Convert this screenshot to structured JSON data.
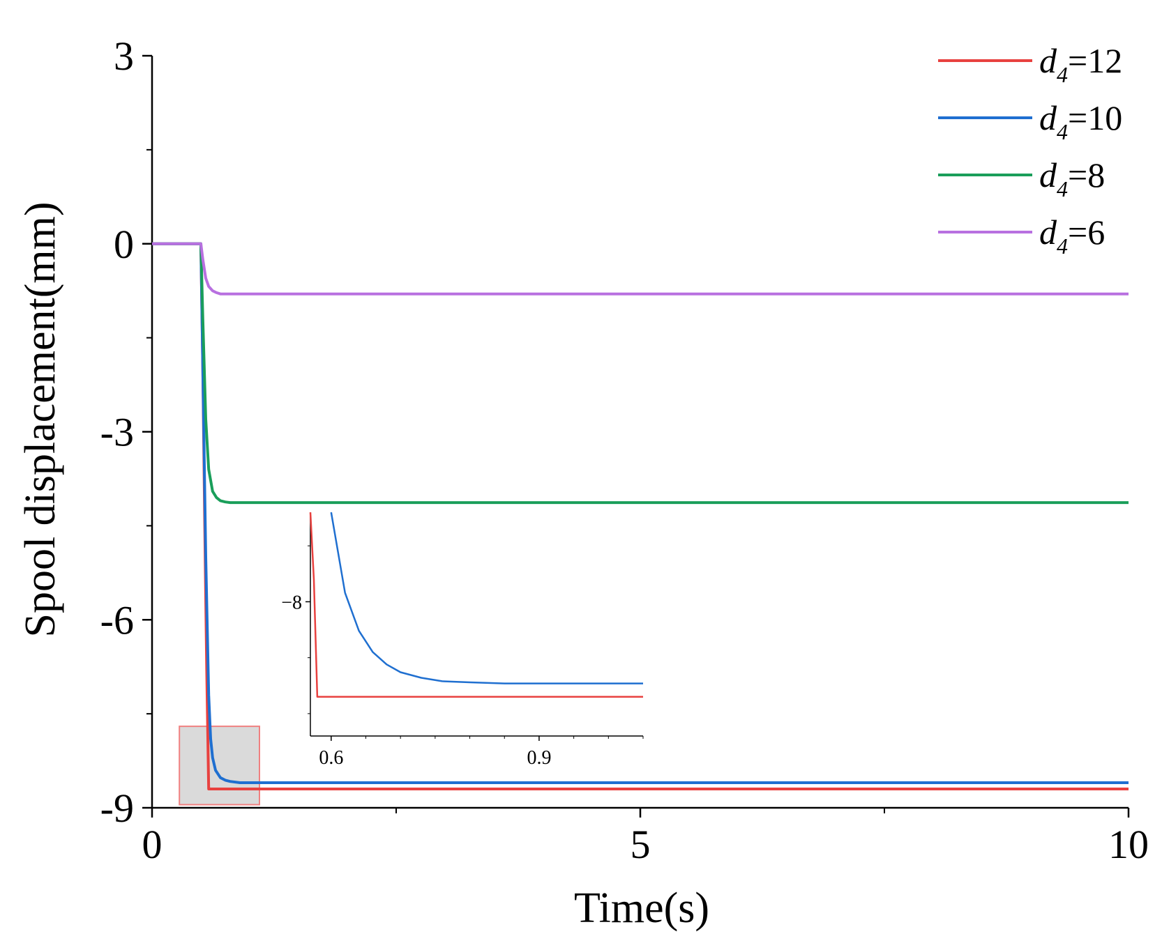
{
  "chart_data": {
    "type": "line",
    "title": "",
    "xlabel": "Time(s)",
    "ylabel": "Spool displacement(mm)",
    "xlim": [
      0,
      10
    ],
    "ylim": [
      -9,
      3
    ],
    "xticks": [
      0,
      5,
      10
    ],
    "yticks": [
      3,
      0,
      -3,
      -6,
      -9
    ],
    "xtick_labels": [
      "0",
      "5",
      "10"
    ],
    "ytick_labels": [
      "3",
      "0",
      "-3",
      "-6",
      "-9"
    ],
    "grid": false,
    "legend_position": "top-right",
    "series": [
      {
        "name": "d4=12",
        "label_base": "d",
        "label_sub": "4",
        "label_rest": "=12",
        "color": "#e8413f",
        "x": [
          0,
          0.5,
          0.52,
          0.54,
          0.56,
          0.58,
          10
        ],
        "y": [
          0,
          0,
          -2.0,
          -4.5,
          -6.8,
          -8.7,
          -8.7
        ]
      },
      {
        "name": "d4=10",
        "label_base": "d",
        "label_sub": "4",
        "label_rest": "=10",
        "color": "#1f6fd0",
        "x": [
          0,
          0.5,
          0.52,
          0.55,
          0.58,
          0.6,
          0.62,
          0.65,
          0.7,
          0.75,
          0.8,
          0.9,
          1.0,
          10
        ],
        "y": [
          0,
          0,
          -2.0,
          -5.0,
          -7.2,
          -7.9,
          -8.2,
          -8.4,
          -8.52,
          -8.56,
          -8.58,
          -8.6,
          -8.6,
          -8.6
        ]
      },
      {
        "name": "d4=8",
        "label_base": "d",
        "label_sub": "4",
        "label_rest": "=8",
        "color": "#1a9e5a",
        "x": [
          0,
          0.5,
          0.52,
          0.55,
          0.58,
          0.62,
          0.66,
          0.7,
          0.75,
          0.8,
          0.9,
          10
        ],
        "y": [
          0,
          0,
          -1.2,
          -2.8,
          -3.6,
          -3.95,
          -4.05,
          -4.1,
          -4.12,
          -4.13,
          -4.13,
          -4.13
        ]
      },
      {
        "name": "d4=6",
        "label_base": "d",
        "label_sub": "4",
        "label_rest": "=6",
        "color": "#b870e0",
        "x": [
          0,
          0.5,
          0.52,
          0.55,
          0.58,
          0.62,
          0.66,
          0.7,
          0.8,
          10
        ],
        "y": [
          0,
          0,
          -0.25,
          -0.55,
          -0.68,
          -0.75,
          -0.78,
          -0.8,
          -0.8,
          -0.8
        ]
      }
    ],
    "highlight_region": {
      "x": [
        0.28,
        1.1
      ],
      "y": [
        -8.95,
        -7.7
      ]
    },
    "inset": {
      "xlim": [
        0.57,
        1.05
      ],
      "ylim": [
        -9.2,
        -7.2
      ],
      "xticks": [
        0.6,
        0.9
      ],
      "yticks": [
        -8
      ],
      "xtick_labels": [
        "0.6",
        "0.9"
      ],
      "ytick_labels": [
        "−8"
      ],
      "series": [
        {
          "name": "d4=12",
          "color": "#e8413f",
          "x": [
            0.57,
            0.575,
            0.58,
            1.05
          ],
          "y": [
            -7.0,
            -7.8,
            -8.85,
            -8.85
          ]
        },
        {
          "name": "d4=10",
          "color": "#1f6fd0",
          "x": [
            0.6,
            0.62,
            0.64,
            0.66,
            0.68,
            0.7,
            0.73,
            0.76,
            0.8,
            0.85,
            0.9,
            1.05
          ],
          "y": [
            -7.2,
            -7.92,
            -8.26,
            -8.45,
            -8.56,
            -8.63,
            -8.68,
            -8.71,
            -8.72,
            -8.73,
            -8.73,
            -8.73
          ]
        }
      ]
    }
  }
}
